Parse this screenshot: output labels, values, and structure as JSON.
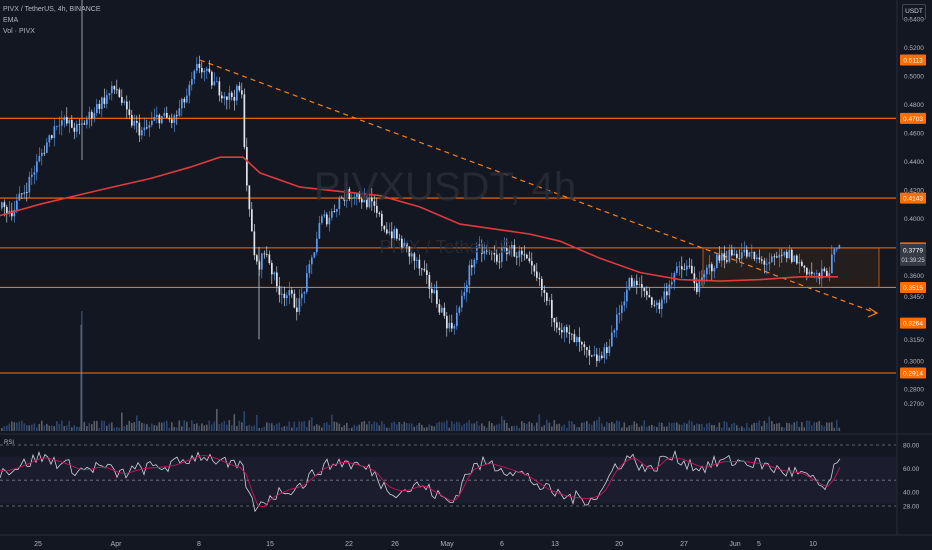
{
  "legend": {
    "symbol": "PIVX / TetherUS, 4h, BINANCE",
    "ema": "EMA",
    "volume": "Vol · PIVX"
  },
  "currency_label": "USDT",
  "watermark": {
    "ticker": "PIVXUSDT, 4h",
    "description": "PIVX / TetherUS"
  },
  "rsi_label": "RSI",
  "price_axis_ticks": [
    "0.5400",
    "0.5200",
    "0.5000",
    "0.4800",
    "0.4600",
    "0.4400",
    "0.4200",
    "0.4000",
    "0.3600",
    "0.3450",
    "0.3150",
    "0.3000",
    "0.2800",
    "0.2700"
  ],
  "price_levels": [
    {
      "value": 0.5113,
      "label": "0.5113",
      "line": false
    },
    {
      "value": 0.4703,
      "label": "0.4703",
      "line": true
    },
    {
      "value": 0.4143,
      "label": "0.4143",
      "line": true
    },
    {
      "value": 0.3793,
      "label": "0.3793",
      "line": true
    },
    {
      "value": 0.3515,
      "label": "0.3515",
      "line": true
    },
    {
      "value": 0.3264,
      "label": "0.3264",
      "line": false
    },
    {
      "value": 0.2914,
      "label": "0.2914",
      "line": true
    }
  ],
  "current_price": {
    "value": 0.3779,
    "label": "0.3779",
    "countdown": "01:39:25"
  },
  "rsi_axis_ticks": [
    "80.00",
    "60.00",
    "40.00",
    "28.00"
  ],
  "time_axis_labels": [
    "25",
    "Apr",
    "8",
    "15",
    "22",
    "26",
    "May",
    "6",
    "13",
    "20",
    "27",
    "Jun",
    "5",
    "10"
  ],
  "colors": {
    "background": "#131722",
    "up": "#5b9cf6",
    "down": "#dfe3ea",
    "ema": "#e0393e",
    "level": "#ff6d00",
    "trendline": "#f57f17",
    "rsi": "#d1d4dc",
    "rsi_ma": "#c2185b"
  }
}
